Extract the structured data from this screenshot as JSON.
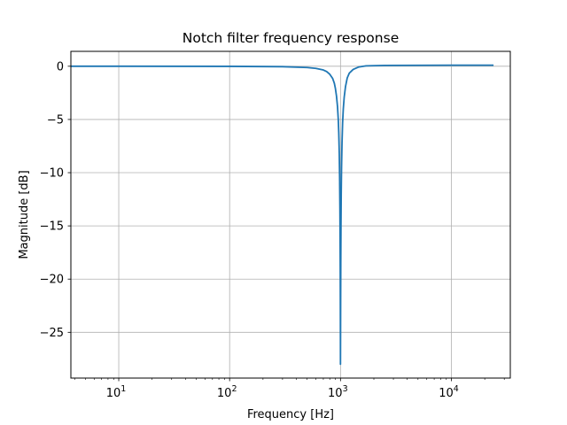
{
  "chart_data": {
    "type": "line",
    "title": "Notch filter frequency response",
    "xlabel": "Frequency [Hz]",
    "ylabel": "Magnitude [dB]",
    "xscale": "log",
    "xlim": [
      3.7,
      34000
    ],
    "ylim": [
      -29.3,
      1.4
    ],
    "grid": true,
    "x_ticks": [
      {
        "value": 10,
        "base": "10",
        "exp": "1"
      },
      {
        "value": 100,
        "base": "10",
        "exp": "2"
      },
      {
        "value": 1000,
        "base": "10",
        "exp": "3"
      },
      {
        "value": 10000,
        "base": "10",
        "exp": "4"
      }
    ],
    "y_ticks": [
      {
        "value": 0,
        "label": "0"
      },
      {
        "value": -5,
        "label": "−5"
      },
      {
        "value": -10,
        "label": "−10"
      },
      {
        "value": -15,
        "label": "−15"
      },
      {
        "value": -20,
        "label": "−20"
      },
      {
        "value": -25,
        "label": "−25"
      }
    ],
    "series": [
      {
        "color": "#1f77b4",
        "notch_frequency_hz": 1000,
        "min_db": -28.0,
        "points": [
          [
            3.7,
            0.0
          ],
          [
            10,
            0.0
          ],
          [
            100,
            -0.01
          ],
          [
            300,
            -0.04
          ],
          [
            500,
            -0.12
          ],
          [
            600,
            -0.2
          ],
          [
            700,
            -0.35
          ],
          [
            750,
            -0.5
          ],
          [
            800,
            -0.75
          ],
          [
            850,
            -1.15
          ],
          [
            880,
            -1.6
          ],
          [
            900,
            -2.1
          ],
          [
            920,
            -2.8
          ],
          [
            940,
            -3.8
          ],
          [
            955,
            -5.0
          ],
          [
            965,
            -6.3
          ],
          [
            975,
            -8.2
          ],
          [
            982,
            -10.5
          ],
          [
            988,
            -13.5
          ],
          [
            992,
            -16.5
          ],
          [
            995,
            -19.5
          ],
          [
            997,
            -22.5
          ],
          [
            998.5,
            -25.5
          ],
          [
            999.5,
            -28.0
          ],
          [
            1001,
            -25.5
          ],
          [
            1003,
            -22.0
          ],
          [
            1006,
            -18.5
          ],
          [
            1010,
            -15.0
          ],
          [
            1015,
            -12.0
          ],
          [
            1022,
            -9.5
          ],
          [
            1032,
            -7.2
          ],
          [
            1045,
            -5.3
          ],
          [
            1060,
            -4.0
          ],
          [
            1080,
            -2.9
          ],
          [
            1110,
            -1.9
          ],
          [
            1150,
            -1.1
          ],
          [
            1200,
            -0.65
          ],
          [
            1300,
            -0.3
          ],
          [
            1450,
            -0.08
          ],
          [
            1700,
            0.04
          ],
          [
            2500,
            0.08
          ],
          [
            5000,
            0.09
          ],
          [
            10000,
            0.1
          ],
          [
            24000,
            0.1
          ]
        ]
      }
    ]
  }
}
